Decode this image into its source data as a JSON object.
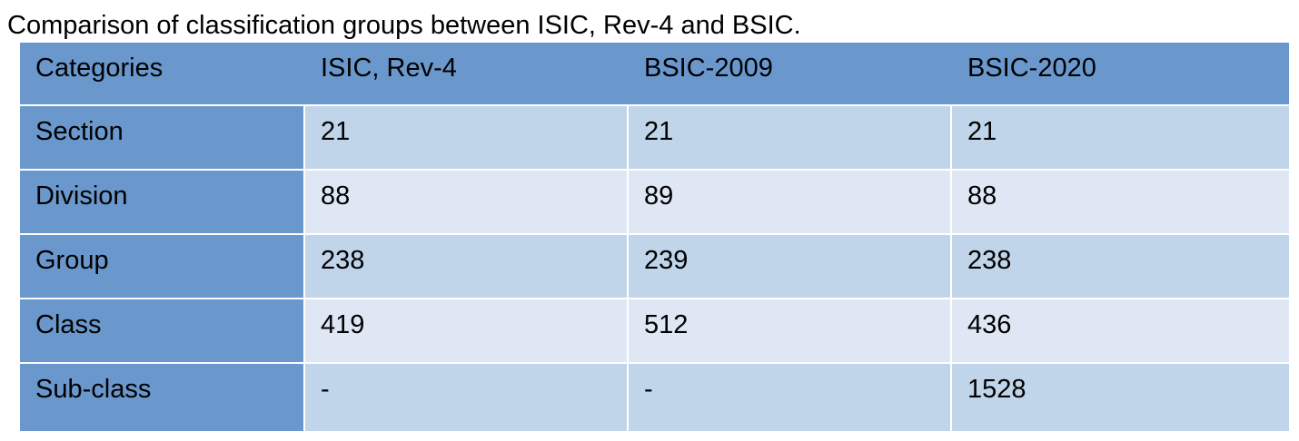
{
  "caption": "Comparison of classification groups between ISIC, Rev-4 and BSIC.",
  "table": {
    "headers": [
      "Categories",
      "ISIC, Rev-4",
      "BSIC-2009",
      "BSIC-2020"
    ],
    "rows": [
      [
        "Section",
        "21",
        "21",
        "21"
      ],
      [
        "Division",
        "88",
        "89",
        "88"
      ],
      [
        "Group",
        "238",
        "239",
        "238"
      ],
      [
        "Class",
        "419",
        "512",
        "436"
      ],
      [
        "Sub-class",
        "-",
        "-",
        "1528"
      ]
    ]
  },
  "colors": {
    "header_bg": "#6a98cd",
    "row_band_dark": "#c0d5ea",
    "row_band_light": "#dee7f3"
  }
}
